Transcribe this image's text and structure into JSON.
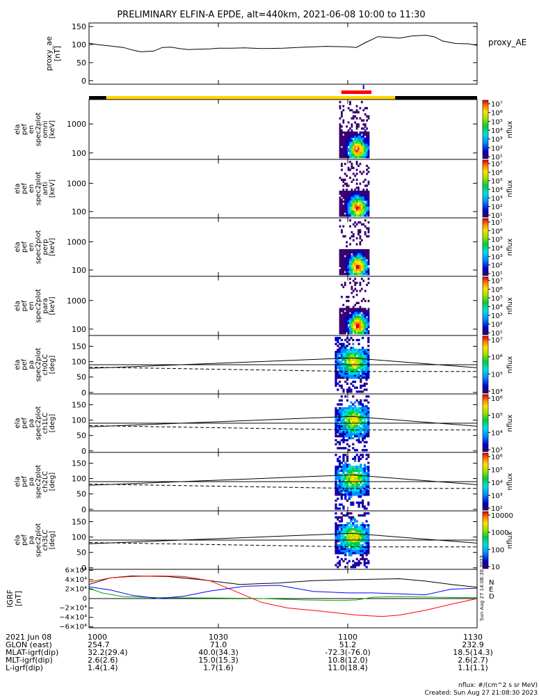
{
  "title": "PRELIMINARY ELFIN-A EPDE, alt=440km, 2021-06-08 10:00 to 11:30",
  "side_stamp": "Sun Aug 27 14:08:30 2023",
  "chart_data": [
    {
      "id": "proxy_ae",
      "type": "line",
      "ylabel": [
        "proxy_ae",
        "[nT]"
      ],
      "ylim": [
        -10,
        160
      ],
      "yticks": [
        "150",
        "100",
        "50",
        "0"
      ],
      "yticks_values": [
        150,
        100,
        50,
        0
      ],
      "legend": "proxy_AE",
      "x_minutes": [
        0,
        3,
        8,
        15,
        20,
        25,
        35,
        40,
        50,
        60,
        70,
        80,
        90,
        100,
        110,
        120,
        130,
        140,
        150,
        160,
        170,
        180,
        190,
        200,
        210,
        220,
        230,
        240,
        250,
        260,
        270,
        280,
        290
      ],
      "x": [
        0,
        2,
        5,
        8,
        10,
        12,
        15,
        17,
        19,
        21,
        23,
        25,
        28,
        30,
        33,
        36,
        40,
        45,
        50,
        55,
        60,
        62,
        64,
        67,
        70,
        72,
        75,
        78,
        80,
        82,
        85,
        88,
        90
      ],
      "y": [
        104,
        100,
        96,
        92,
        85,
        80,
        82,
        92,
        93,
        89,
        86,
        87,
        88,
        90,
        90,
        91,
        89,
        90,
        93,
        95,
        94,
        92,
        105,
        122,
        120,
        118,
        124,
        126,
        122,
        110,
        103,
        102,
        98
      ]
    },
    {
      "id": "orbit_bar",
      "type": "bar",
      "segments": [
        {
          "from": 0,
          "to": 4,
          "color": "#000000"
        },
        {
          "from": 4,
          "to": 71,
          "color": "#ffd700"
        },
        {
          "from": 71,
          "to": 90,
          "color": "#000000"
        }
      ],
      "marker": {
        "from": 58.5,
        "to": 65.5,
        "color": "#ff0000"
      },
      "tick": {
        "at": 63.5,
        "color": "#0000ff"
      }
    },
    {
      "id": "en_spec_omni",
      "type": "heatmap",
      "ylabel": [
        "ela",
        "pef",
        "en",
        "spec2plot",
        "omni",
        "[keV]"
      ],
      "yticks": [
        "1000",
        "100"
      ],
      "yticks_values": [
        1000,
        100
      ],
      "yscale": "log",
      "ylim": [
        60,
        7000
      ],
      "zlabel": "nflux",
      "zticks": [
        "10⁷",
        "10⁶",
        "10⁵",
        "10⁴",
        "10³",
        "10²",
        "10¹"
      ],
      "active_interval": [
        58,
        65
      ]
    },
    {
      "id": "en_spec_anti",
      "type": "heatmap",
      "ylabel": [
        "ela",
        "pef",
        "en",
        "spec2plot",
        "anti",
        "[keV]"
      ],
      "yticks": [
        "1000",
        "100"
      ],
      "yticks_values": [
        1000,
        100
      ],
      "yscale": "log",
      "ylim": [
        60,
        7000
      ],
      "zlabel": "nflux",
      "zticks": [
        "10⁷",
        "10⁶",
        "10⁵",
        "10⁴",
        "10³",
        "10²",
        "10¹"
      ],
      "active_interval": [
        58,
        65
      ]
    },
    {
      "id": "en_spec_perp",
      "type": "heatmap",
      "ylabel": [
        "ela",
        "pef",
        "en",
        "spec2plot",
        "perp",
        "[keV]"
      ],
      "yticks": [
        "1000",
        "100"
      ],
      "yticks_values": [
        1000,
        100
      ],
      "yscale": "log",
      "ylim": [
        60,
        7000
      ],
      "zlabel": "nflux",
      "zticks": [
        "10⁷",
        "10⁶",
        "10⁵",
        "10⁴",
        "10³",
        "10²",
        "10¹"
      ],
      "active_interval": [
        58,
        65
      ]
    },
    {
      "id": "en_spec_para",
      "type": "heatmap",
      "ylabel": [
        "ela",
        "pef",
        "en",
        "spec2plot",
        "para",
        "[keV]"
      ],
      "yticks": [
        "1000",
        "100"
      ],
      "yticks_values": [
        1000,
        100
      ],
      "yscale": "log",
      "ylim": [
        60,
        7000
      ],
      "zlabel": "nflux",
      "zticks": [
        "10⁷",
        "10⁶",
        "10⁵",
        "10⁴",
        "10³",
        "10²",
        "10¹"
      ],
      "active_interval": [
        58,
        65
      ]
    },
    {
      "id": "pa_spec_ch0",
      "type": "heatmap",
      "ylabel": [
        "ela",
        "pef",
        "pa",
        "spec2plot",
        "ch0LC",
        "[deg]"
      ],
      "yticks": [
        "150",
        "100",
        "50",
        "0"
      ],
      "yticks_values": [
        150,
        100,
        50,
        0
      ],
      "ylim": [
        -5,
        185
      ],
      "zlabel": "nflux",
      "zticks": [
        "10⁷",
        "10⁶",
        "10⁵",
        "10⁴"
      ],
      "active_interval": [
        57,
        65
      ],
      "lc_solid": {
        "x": [
          0,
          61,
          90
        ],
        "y": [
          78,
          112,
          80
        ]
      },
      "lc_solid_flat": 90,
      "lc_dashed": {
        "x": [
          0,
          61,
          90
        ],
        "y": [
          82,
          68,
          68
        ]
      }
    },
    {
      "id": "pa_spec_ch1",
      "type": "heatmap",
      "ylabel": [
        "ela",
        "pef",
        "pa",
        "spec2plot",
        "ch1LC",
        "[deg]"
      ],
      "yticks": [
        "150",
        "100",
        "50",
        "0"
      ],
      "yticks_values": [
        150,
        100,
        50,
        0
      ],
      "ylim": [
        -5,
        185
      ],
      "zlabel": "nflux",
      "zticks": [
        "10⁶",
        "10⁵",
        "10⁴",
        "10³"
      ],
      "active_interval": [
        57,
        65
      ],
      "lc_solid": {
        "x": [
          0,
          61,
          90
        ],
        "y": [
          78,
          112,
          80
        ]
      },
      "lc_solid_flat": 90,
      "lc_dashed": {
        "x": [
          0,
          61,
          90
        ],
        "y": [
          82,
          68,
          68
        ]
      }
    },
    {
      "id": "pa_spec_ch2",
      "type": "heatmap",
      "ylabel": [
        "ela",
        "pef",
        "pa",
        "spec2plot",
        "ch2LC",
        "[deg]"
      ],
      "yticks": [
        "150",
        "100",
        "50",
        "0"
      ],
      "yticks_values": [
        150,
        100,
        50,
        0
      ],
      "ylim": [
        -5,
        185
      ],
      "zlabel": "nflux",
      "zticks": [
        "10⁶",
        "10⁵",
        "10⁴",
        "10³",
        "10²"
      ],
      "active_interval": [
        57,
        65
      ],
      "lc_solid": {
        "x": [
          0,
          61,
          90
        ],
        "y": [
          78,
          112,
          80
        ]
      },
      "lc_solid_flat": 90,
      "lc_dashed": {
        "x": [
          0,
          61,
          90
        ],
        "y": [
          82,
          68,
          68
        ]
      }
    },
    {
      "id": "pa_spec_ch3",
      "type": "heatmap",
      "ylabel": [
        "ela",
        "pef",
        "pa",
        "spec2plot",
        "ch3LC",
        "[deg]"
      ],
      "yticks": [
        "150",
        "100",
        "50",
        "0"
      ],
      "yticks_values": [
        150,
        100,
        50,
        0
      ],
      "ylim": [
        -5,
        185
      ],
      "zlabel": "nflux",
      "zticks": [
        "10000",
        "1000",
        "100",
        "10"
      ],
      "active_interval": [
        57,
        65
      ],
      "lc_solid": {
        "x": [
          0,
          61,
          90
        ],
        "y": [
          78,
          112,
          80
        ]
      },
      "lc_solid_flat": 90,
      "lc_dashed": {
        "x": [
          0,
          61,
          90
        ],
        "y": [
          82,
          68,
          68
        ]
      }
    },
    {
      "id": "igrf",
      "type": "line",
      "ylabel": [
        "IGRF",
        "[nT]"
      ],
      "ylim": [
        -62000,
        62000
      ],
      "yticks": [
        "6×10⁴",
        "4×10⁴",
        "2×10⁴",
        "0",
        "−2×10⁴",
        "−4×10⁴",
        "−6×10⁴"
      ],
      "yticks_values": [
        60000,
        40000,
        20000,
        0,
        -20000,
        -40000,
        -60000
      ],
      "legend": [
        "N",
        "E",
        "D"
      ],
      "series": [
        {
          "name": "N",
          "color": "#000000",
          "x": [
            0,
            5,
            10,
            18,
            26,
            35,
            44,
            52,
            60,
            66,
            72,
            78,
            84,
            90
          ],
          "y": [
            30000,
            44000,
            48000,
            47000,
            40000,
            30000,
            33000,
            38000,
            40000,
            41000,
            42000,
            37000,
            30000,
            24000
          ]
        },
        {
          "name": "E",
          "color": "#00aa00",
          "x": [
            0,
            3,
            8,
            16,
            30,
            40,
            50,
            58,
            62,
            66,
            72,
            80,
            86,
            90
          ],
          "y": [
            22000,
            12000,
            4000,
            2000,
            1000,
            200,
            -3000,
            -4000,
            -3000,
            3000,
            4000,
            3000,
            2000,
            2000
          ]
        },
        {
          "name": "D",
          "color": "#ff0000",
          "x": [
            0,
            5,
            10,
            16,
            22,
            28,
            34,
            40,
            46,
            54,
            62,
            68,
            72,
            78,
            84,
            90
          ],
          "y": [
            35000,
            44000,
            47000,
            48000,
            47000,
            38000,
            15000,
            -8000,
            -20000,
            -27000,
            -35000,
            -38000,
            -35000,
            -25000,
            -12000,
            0
          ]
        },
        {
          "name": "",
          "color": "#0000ff",
          "x": [
            0,
            5,
            10,
            16,
            22,
            28,
            36,
            44,
            52,
            60,
            66,
            72,
            78,
            84,
            90
          ],
          "y": [
            25000,
            18000,
            7000,
            0,
            5000,
            16000,
            26000,
            28000,
            15000,
            12000,
            12000,
            10000,
            8000,
            20000,
            22000
          ]
        }
      ]
    }
  ],
  "x_axis": {
    "label": "2021 Jun 08",
    "ticks": [
      "1000",
      "1030",
      "1100",
      "1130"
    ],
    "tick_minutes": [
      0,
      30,
      60,
      90
    ]
  },
  "ephemeris": [
    {
      "label": "GLON (east)",
      "values": [
        "254.7",
        "71.0",
        "51.2",
        "232.9"
      ]
    },
    {
      "label": "MLAT-igrf(dip)",
      "values": [
        "32.2(29.4)",
        "40.0(34.3)",
        "-72.3(-76.0)",
        "18.5(14.3)"
      ]
    },
    {
      "label": "MLT-igrf(dip)",
      "values": [
        "2.6(2.6)",
        "15.0(15.3)",
        "10.8(12.0)",
        "2.6(2.7)"
      ]
    },
    {
      "label": "L-igrf(dip)",
      "values": [
        "1.4(1.4)",
        "1.7(1.6)",
        "11.0(18.4)",
        "1.1(1.1)"
      ]
    }
  ],
  "footer": {
    "units": "nflux: #/(cm^2 s sr MeV)",
    "created": "Created: Sun Aug 27 21:08:30 2023"
  }
}
